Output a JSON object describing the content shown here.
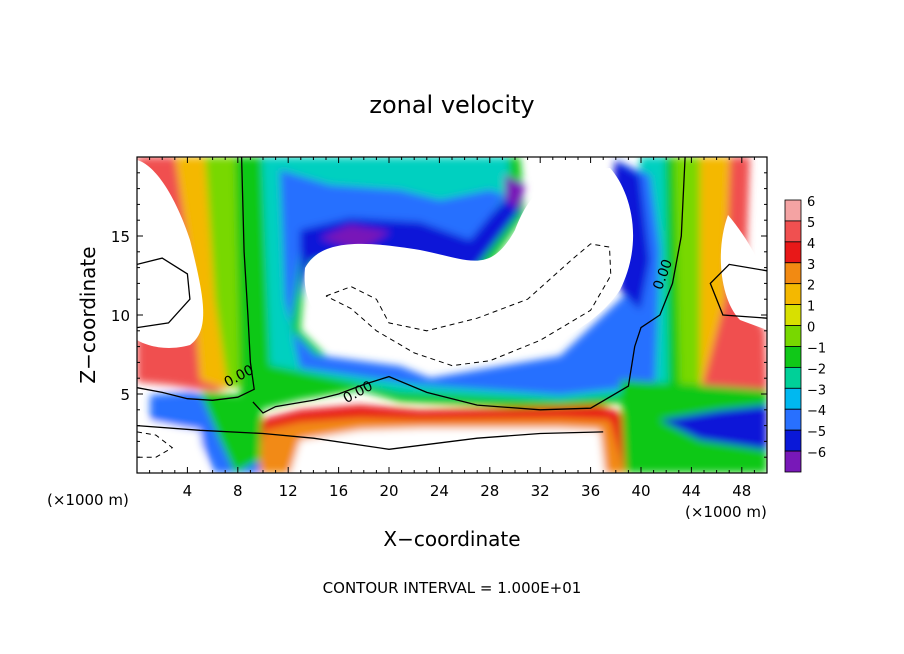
{
  "chart_data": {
    "type": "heatmap",
    "title": "zonal velocity",
    "xlabel": "X−coordinate",
    "ylabel": "Z−coordinate",
    "x_unit_left": "(×1000 m)",
    "x_unit_right": "(×1000 m)",
    "footer": "CONTOUR INTERVAL = 1.000E+01",
    "xlim": [
      0,
      50
    ],
    "ylim": [
      0,
      20
    ],
    "x_ticks": [
      4,
      8,
      12,
      16,
      20,
      24,
      28,
      32,
      36,
      40,
      44,
      48
    ],
    "x_tick_labels": [
      "4",
      "8",
      "12",
      "16",
      "20",
      "24",
      "28",
      "32",
      "36",
      "40",
      "44",
      "48"
    ],
    "y_ticks": [
      5,
      10,
      15
    ],
    "y_tick_labels": [
      "5",
      "10",
      "15"
    ],
    "colorbar": {
      "levels": [
        6,
        5,
        4,
        3,
        2,
        1,
        0,
        -1,
        -2,
        -3,
        -4,
        -5,
        -6
      ],
      "labels": [
        "6",
        "5",
        "4",
        "3",
        "2",
        "1",
        "0",
        "−1",
        "−2",
        "−3",
        "−4",
        "−5",
        "−6"
      ],
      "colors": [
        "#f4a3a3",
        "#f05050",
        "#e81818",
        "#f28a12",
        "#f4b800",
        "#d8e000",
        "#78d800",
        "#10c818",
        "#00d098",
        "#00b8f0",
        "#2870ff",
        "#0a18d8",
        "#7818b8"
      ]
    },
    "zero_contour_label": "0.00",
    "contours": [
      {
        "value": 0,
        "style": "solid",
        "points": [
          [
            0,
            5.4
          ],
          [
            2,
            5.1
          ],
          [
            4,
            4.7
          ],
          [
            6,
            4.6
          ],
          [
            8,
            4.8
          ],
          [
            9.3,
            5.3
          ],
          [
            9.0,
            7
          ],
          [
            8.8,
            10
          ],
          [
            8.5,
            14
          ],
          [
            8.3,
            20
          ]
        ]
      },
      {
        "value": 0,
        "style": "solid",
        "points": [
          [
            9.2,
            4.5
          ],
          [
            10,
            3.8
          ],
          [
            11,
            4.2
          ],
          [
            14,
            4.6
          ],
          [
            16,
            5.0
          ],
          [
            18,
            5.6
          ],
          [
            20,
            6.1
          ],
          [
            23,
            5.1
          ],
          [
            27,
            4.3
          ],
          [
            32,
            4.0
          ],
          [
            36,
            4.1
          ],
          [
            39,
            5.5
          ],
          [
            39.5,
            8
          ],
          [
            40,
            9.2
          ],
          [
            41.5,
            10
          ],
          [
            42.5,
            12
          ],
          [
            43.2,
            15
          ],
          [
            43.5,
            20
          ]
        ]
      },
      {
        "value": 0,
        "style": "solid",
        "points": [
          [
            0,
            3.0
          ],
          [
            5,
            2.7
          ],
          [
            10,
            2.5
          ],
          [
            14,
            2.2
          ],
          [
            20,
            1.5
          ],
          [
            27,
            2.2
          ],
          [
            32,
            2.5
          ],
          [
            37,
            2.6
          ]
        ]
      },
      {
        "value": 0,
        "style": "solid",
        "points": [
          [
            0,
            13.2
          ],
          [
            2,
            13.6
          ],
          [
            4,
            12.6
          ],
          [
            4.2,
            11
          ],
          [
            2.5,
            9.5
          ],
          [
            0,
            9.2
          ]
        ]
      },
      {
        "value": 0,
        "style": "solid",
        "points": [
          [
            50,
            12.8
          ],
          [
            47,
            13.2
          ],
          [
            45.5,
            12
          ],
          [
            46.5,
            10
          ],
          [
            50,
            9.8
          ]
        ]
      },
      {
        "value": -10,
        "style": "dashed",
        "points": [
          [
            15,
            11.2
          ],
          [
            17,
            11.8
          ],
          [
            19,
            11
          ],
          [
            20,
            9.5
          ],
          [
            23,
            9.0
          ],
          [
            27,
            9.8
          ],
          [
            31,
            11
          ],
          [
            34.5,
            13.5
          ],
          [
            36,
            14.5
          ],
          [
            37.5,
            14.3
          ],
          [
            37.6,
            12.5
          ],
          [
            36,
            10.3
          ],
          [
            32,
            8.4
          ],
          [
            28,
            7.1
          ],
          [
            25,
            6.8
          ],
          [
            22,
            7.6
          ],
          [
            19,
            9.0
          ],
          [
            17,
            10.4
          ],
          [
            15,
            11.2
          ]
        ]
      },
      {
        "value": -10,
        "style": "dashed",
        "points": [
          [
            0,
            2.6
          ],
          [
            1.5,
            2.4
          ],
          [
            2.8,
            1.6
          ],
          [
            1.5,
            1.0
          ],
          [
            0,
            1.0
          ]
        ]
      }
    ]
  }
}
